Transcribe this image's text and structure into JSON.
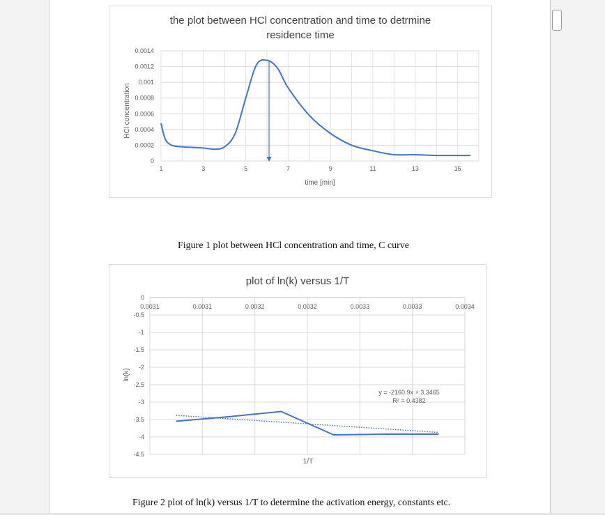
{
  "document": {
    "figure1_caption": "Figure 1 plot between HCl concentration and time, C curve",
    "figure2_caption": "Figure 2 plot of ln(k) versus 1/T to determine the activation energy, constants etc."
  },
  "chart_data": [
    {
      "type": "line",
      "title": "the plot between HCl concentration and time to detrmine residence time",
      "title_line1": "the plot between HCl concentration and time to detrmine",
      "title_line2": "residence time",
      "xlabel": "time [min]",
      "ylabel": "HCl concentration",
      "xlim": [
        1,
        16
      ],
      "ylim": [
        0,
        0.0014
      ],
      "x_ticks": [
        "1",
        "3",
        "5",
        "7",
        "9",
        "11",
        "13",
        "15"
      ],
      "y_ticks": [
        "0",
        "0.0002",
        "0.0004",
        "0.0006",
        "0.0008",
        "0.001",
        "0.0012",
        "0.0014"
      ],
      "grid": true,
      "line_color": "#4472c4",
      "series": [
        {
          "x": [
            1,
            1.2,
            1.5,
            2,
            3,
            3.5,
            4,
            4.5,
            5,
            5.5,
            6,
            6.5,
            7,
            8,
            9,
            10,
            11,
            12,
            13,
            14,
            15,
            15.6
          ],
          "y": [
            0.00048,
            0.00028,
            0.0002,
            0.00018,
            0.000165,
            0.00015,
            0.00018,
            0.00035,
            0.0008,
            0.00122,
            0.00128,
            0.00118,
            0.00093,
            0.00058,
            0.00035,
            0.0002,
            0.00013,
            8e-05,
            8e-05,
            7e-05,
            7e-05,
            7e-05
          ]
        }
      ],
      "annotation": {
        "type": "arrow-down",
        "x": 6.1,
        "y_from": 0.00128,
        "y_to": 0
      }
    },
    {
      "type": "line",
      "title": "plot of ln(k) versus 1/T",
      "xlabel": "1/T",
      "ylabel": "ln(k)",
      "ylim": [
        -4.5,
        0
      ],
      "x_ticks": [
        "0.0031",
        "0.0031",
        "0.0032",
        "0.0032",
        "0.0033",
        "0.0033",
        "0.0034"
      ],
      "y_ticks": [
        "0",
        "-0.5",
        "-1",
        "-1.5",
        "-2",
        "-2.5",
        "-3",
        "-3.5",
        "-4",
        "-4.5"
      ],
      "grid": true,
      "line_color": "#4472c4",
      "series": [
        {
          "x_cat": [
            1,
            2,
            3,
            4,
            5,
            6
          ],
          "y": [
            -3.55,
            -3.42,
            -3.27,
            -3.94,
            -3.92,
            -3.92
          ]
        }
      ],
      "trendline": {
        "style": "dotted",
        "x_cat": [
          1,
          6
        ],
        "y": [
          -3.38,
          -3.87
        ],
        "equation": "y = -2160.9x + 3.3465",
        "r_squared": "R² = 0.4382"
      }
    }
  ]
}
